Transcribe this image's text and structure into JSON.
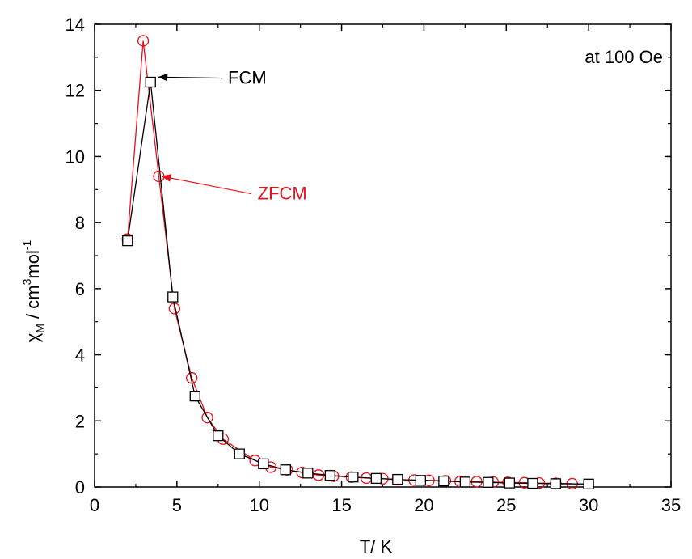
{
  "chart_data": {
    "type": "line",
    "xlabel": "T/ K",
    "ylabel": {
      "main": "χ",
      "sub": "M",
      "rest": " /  cm",
      "sup1": "3",
      "mid": "mol",
      "sup2": "-1"
    },
    "xlim": [
      0,
      35
    ],
    "ylim": [
      0,
      14
    ],
    "xticks": [
      0,
      5,
      10,
      15,
      20,
      25,
      30,
      35
    ],
    "yticks": [
      0,
      2,
      4,
      6,
      8,
      10,
      12,
      14
    ],
    "grid": false,
    "annotation_field": "at 100 Oe",
    "series": [
      {
        "name": "ZFCM",
        "color": "#e8101a",
        "marker": "circle",
        "x": [
          2.0,
          2.95,
          3.9,
          4.85,
          5.9,
          6.85,
          7.8,
          9.75,
          10.7,
          11.7,
          12.6,
          13.6,
          14.5,
          15.6,
          16.5,
          17.5,
          18.4,
          19.4,
          20.3,
          21.3,
          22.2,
          23.2,
          24.2,
          25.1,
          26.1,
          27.0,
          28.0,
          29.0
        ],
        "y": [
          7.5,
          13.5,
          9.4,
          5.4,
          3.3,
          2.1,
          1.45,
          0.8,
          0.6,
          0.52,
          0.44,
          0.36,
          0.33,
          0.3,
          0.27,
          0.25,
          0.22,
          0.21,
          0.2,
          0.19,
          0.17,
          0.16,
          0.15,
          0.14,
          0.13,
          0.12,
          0.11,
          0.1
        ]
      },
      {
        "name": "FCM",
        "color": "#000000",
        "marker": "square",
        "x": [
          2.0,
          3.4,
          4.75,
          6.1,
          7.5,
          8.8,
          10.25,
          11.6,
          12.95,
          14.3,
          15.7,
          17.1,
          18.4,
          19.8,
          21.2,
          22.5,
          23.9,
          25.2,
          26.6,
          28.0,
          30.0
        ],
        "y": [
          7.45,
          12.25,
          5.75,
          2.75,
          1.55,
          1.0,
          0.7,
          0.52,
          0.42,
          0.35,
          0.3,
          0.26,
          0.23,
          0.2,
          0.18,
          0.15,
          0.14,
          0.12,
          0.11,
          0.1,
          0.09
        ]
      }
    ],
    "annotations": [
      {
        "text": "FCM",
        "color": "#000000",
        "text_at": [
          8.1,
          12.2
        ],
        "arrow_to": [
          3.9,
          12.4
        ]
      },
      {
        "text": "ZFCM",
        "color": "#e8101a",
        "text_at": [
          9.9,
          8.7
        ],
        "arrow_to": [
          4.1,
          9.4
        ]
      }
    ]
  }
}
